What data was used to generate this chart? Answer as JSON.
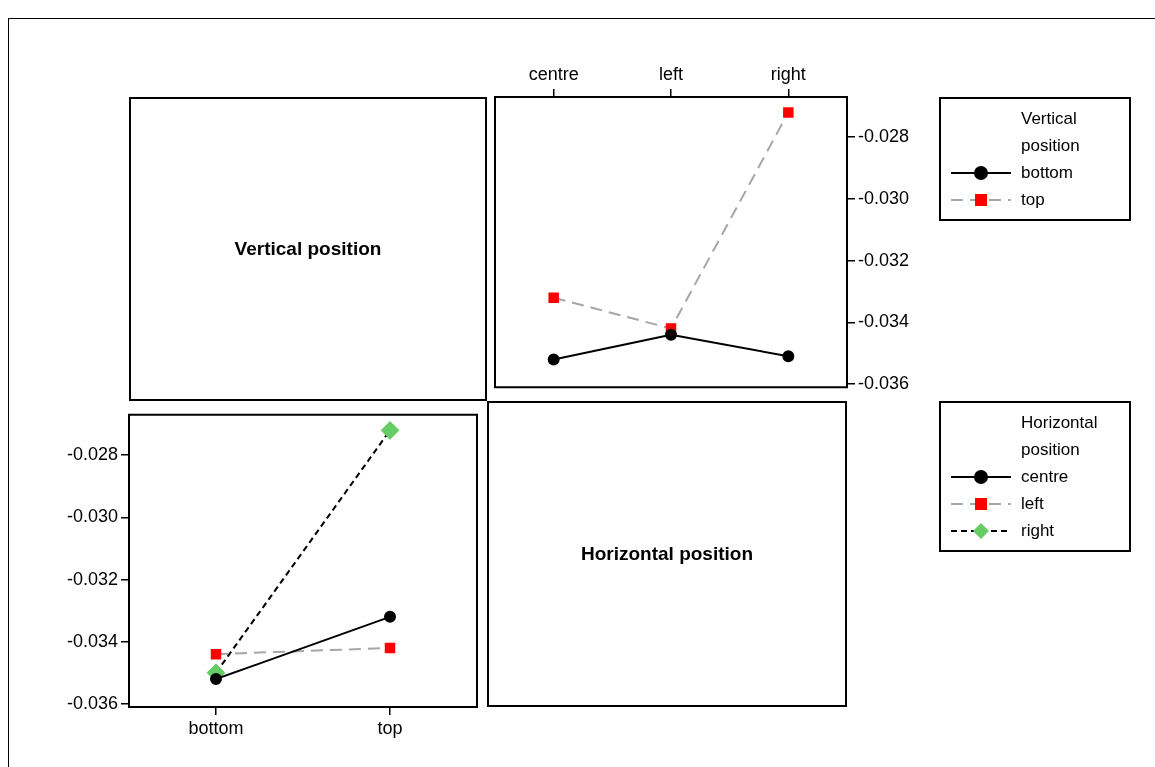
{
  "chart_data": [
    {
      "type": "other",
      "title": "Vertical position"
    },
    {
      "type": "line",
      "categories": [
        "centre",
        "left",
        "right"
      ],
      "legend_title": "Vertical position",
      "legend": "right",
      "ylim": [
        -0.0361,
        -0.0267
      ],
      "yticks": [
        -0.036,
        -0.034,
        -0.032,
        {
          "value": -0.03,
          "label": "-0.030"
        },
        -0.028
      ],
      "series": [
        {
          "name": "bottom",
          "color": "#000000",
          "colors": [
            "#000000",
            "#000000",
            "#000000"
          ],
          "marker": "circle",
          "line_style": "solid",
          "values": [
            -0.0352,
            -0.0344,
            -0.0351
          ]
        },
        {
          "name": "top",
          "color": "#a6a6a6",
          "colors": [
            "#ff0000",
            "#ff0000",
            "#ff0000"
          ],
          "marker": "square",
          "line_style": "dashed",
          "values": [
            -0.0332,
            -0.0342,
            -0.0272
          ]
        }
      ]
    },
    {
      "type": "line",
      "categories": [
        "bottom",
        "top"
      ],
      "legend_title": "Horizontal position",
      "legend": "right",
      "ylim": [
        -0.0361,
        -0.0267
      ],
      "yticks": [
        -0.036,
        -0.034,
        -0.032,
        {
          "value": -0.03,
          "label": "-0.030"
        },
        -0.028
      ],
      "series": [
        {
          "name": "centre",
          "color": "#000000",
          "colors": [
            "#000000",
            "#000000"
          ],
          "marker": "circle",
          "line_style": "solid",
          "values": [
            -0.0352,
            -0.0332
          ]
        },
        {
          "name": "left",
          "color": "#a6a6a6",
          "colors": [
            "#ff0000",
            "#ff0000"
          ],
          "marker": "square",
          "line_style": "dashed",
          "values": [
            -0.0344,
            -0.0342
          ]
        },
        {
          "name": "right",
          "color": "#000000",
          "colors": [
            "#66cc66",
            "#66cc66"
          ],
          "marker": "diamond",
          "line_style": "dotted",
          "values": [
            -0.035,
            -0.0272
          ]
        }
      ]
    },
    {
      "type": "other",
      "title": "Horizontal position"
    }
  ]
}
